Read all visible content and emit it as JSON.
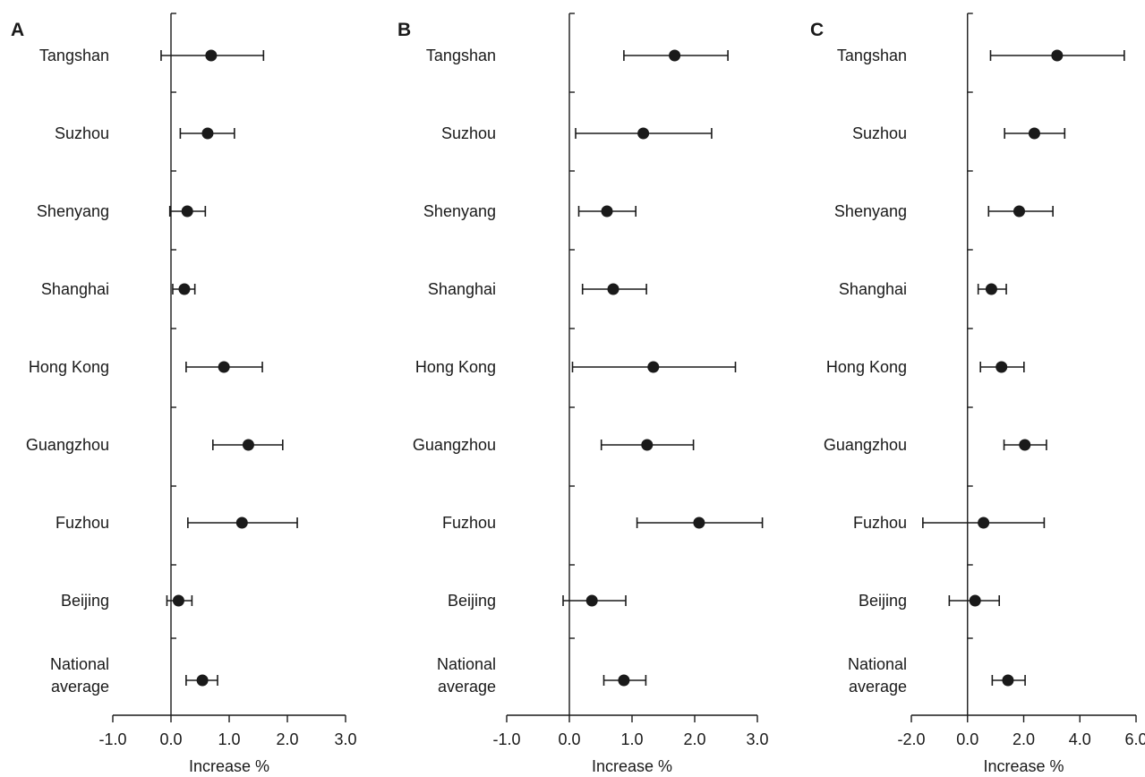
{
  "chart_data": [
    {
      "type": "forest",
      "panel": "A",
      "categories": [
        "Tangshan",
        "Suzhou",
        "Shenyang",
        "Shanghai",
        "Hong Kong",
        "Guangzhou",
        "Fuzhou",
        "Beijing",
        "National average"
      ],
      "estimates": [
        0.69,
        0.63,
        0.28,
        0.23,
        0.91,
        1.33,
        1.22,
        0.13,
        0.54
      ],
      "lower": [
        -0.17,
        0.16,
        -0.02,
        0.03,
        0.26,
        0.72,
        0.29,
        -0.07,
        0.26
      ],
      "upper": [
        1.59,
        1.09,
        0.59,
        0.41,
        1.57,
        1.92,
        2.17,
        0.36,
        0.8
      ],
      "xticks": [
        "-1.0",
        "0.0",
        "1.0",
        "2.0",
        "3.0"
      ],
      "xlim": [
        -1.0,
        3.0
      ],
      "xlabel": "Increase %",
      "reference_line": 0
    },
    {
      "type": "forest",
      "panel": "B",
      "categories": [
        "Tangshan",
        "Suzhou",
        "Shenyang",
        "Shanghai",
        "Hong Kong",
        "Guangzhou",
        "Fuzhou",
        "Beijing",
        "National average"
      ],
      "estimates": [
        1.68,
        1.18,
        0.6,
        0.7,
        1.34,
        1.24,
        2.07,
        0.36,
        0.87
      ],
      "lower": [
        0.87,
        0.1,
        0.15,
        0.21,
        0.05,
        0.51,
        1.08,
        -0.1,
        0.55
      ],
      "upper": [
        2.53,
        2.27,
        1.06,
        1.23,
        2.65,
        1.98,
        3.08,
        0.9,
        1.22
      ],
      "xticks": [
        "-1.0",
        "0.0",
        "1.0",
        "2.0",
        "3.0"
      ],
      "xlim": [
        -1.0,
        3.0
      ],
      "xlabel": "Increase %",
      "reference_line": 0
    },
    {
      "type": "forest",
      "panel": "C",
      "categories": [
        "Tangshan",
        "Suzhou",
        "Shenyang",
        "Shanghai",
        "Hong Kong",
        "Guangzhou",
        "Fuzhou",
        "Beijing",
        "National average"
      ],
      "estimates": [
        3.19,
        2.38,
        1.84,
        0.85,
        1.21,
        2.04,
        0.57,
        0.27,
        1.44
      ],
      "lower": [
        0.82,
        1.32,
        0.75,
        0.38,
        0.46,
        1.3,
        -1.59,
        -0.65,
        0.88
      ],
      "upper": [
        5.58,
        3.46,
        3.04,
        1.38,
        2.01,
        2.81,
        2.73,
        1.13,
        2.05
      ],
      "xticks": [
        "-2.0",
        "0.0",
        "2.0",
        "4.0",
        "6.0"
      ],
      "xlim": [
        -2.0,
        6.0
      ],
      "xlabel": "Increase %",
      "reference_line": 0
    }
  ]
}
